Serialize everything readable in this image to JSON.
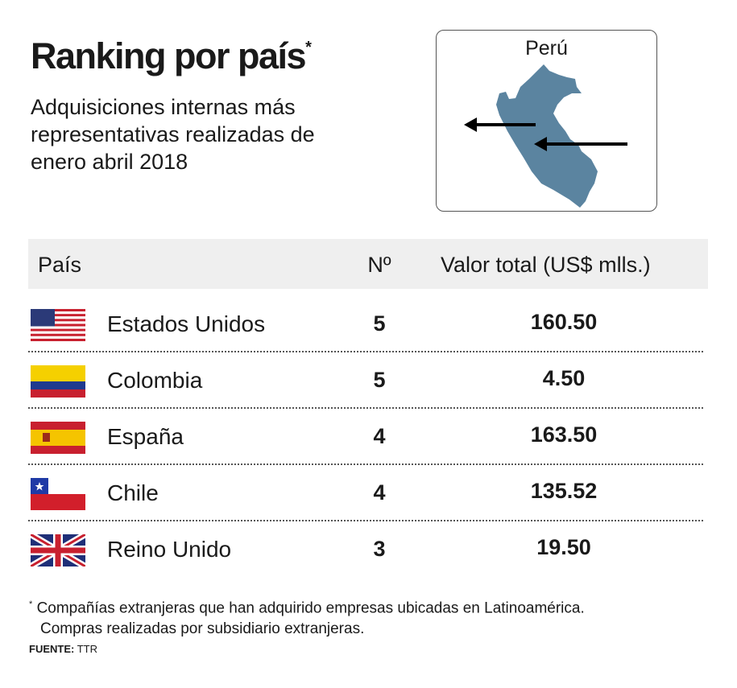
{
  "title": "Ranking por país",
  "title_mark": "*",
  "subtitle": "Adquisiciones internas más representativas realizadas de enero abril 2018",
  "map": {
    "label": "Perú",
    "fill": "#5b84a0"
  },
  "chart_data": {
    "type": "table",
    "columns": [
      "País",
      "Nº",
      "Valor total (US$ mlls.)"
    ],
    "rows": [
      {
        "country": "Estados Unidos",
        "flag": "usa-flag",
        "count": "5",
        "value": "160.50"
      },
      {
        "country": "Colombia",
        "flag": "colombia-flag",
        "count": "5",
        "value": "4.50"
      },
      {
        "country": "España",
        "flag": "spain-flag",
        "count": "4",
        "value": "163.50"
      },
      {
        "country": "Chile",
        "flag": "chile-flag",
        "count": "4",
        "value": "135.52"
      },
      {
        "country": "Reino Unido",
        "flag": "uk-flag",
        "count": "3",
        "value": "19.50"
      }
    ]
  },
  "footnote": {
    "mark": "*",
    "line1": "Compañías extranjeras que han adquirido empresas ubicadas en Latinoamérica.",
    "line2": "Compras realizadas por subsidiario extranjeras."
  },
  "source": {
    "label": "FUENTE:",
    "value": "TTR"
  }
}
